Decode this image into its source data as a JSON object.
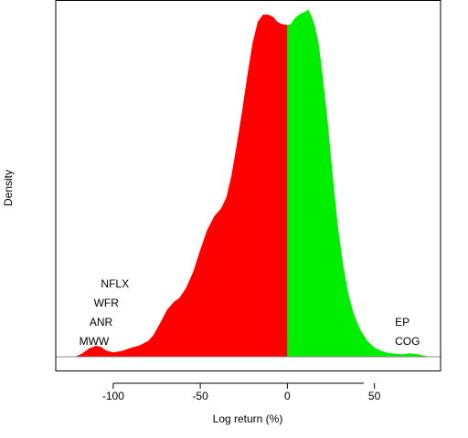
{
  "chart_data": {
    "type": "area",
    "title": "",
    "xlabel": "Log return (%)",
    "ylabel": "Density",
    "xlim": [
      -133,
      88
    ],
    "ylim": [
      0,
      1
    ],
    "x_ticks": [
      -100,
      -50,
      0,
      50
    ],
    "y_ticks": [],
    "grid": false,
    "legend": "none",
    "split_at": 0,
    "colors": {
      "negative": "#ff0000",
      "positive": "#00ee00",
      "axis": "#000000",
      "background": "#ffffff"
    },
    "series": [
      {
        "x": [
          -122,
          -118,
          -114,
          -110,
          -107,
          -104,
          -100,
          -95,
          -90,
          -85,
          -80,
          -77,
          -73,
          -69,
          -65,
          -62,
          -58,
          -54,
          -50,
          -46,
          -42,
          -38,
          -35,
          -32,
          -29,
          -26,
          -23,
          -20,
          -17,
          -14,
          -11,
          -8,
          -6,
          -4,
          -2,
          0,
          2,
          4,
          6,
          8,
          10,
          12,
          14,
          16,
          18,
          20,
          23,
          26,
          29,
          32,
          35,
          38,
          42,
          46,
          50,
          54,
          58,
          62,
          66,
          70,
          74,
          78,
          82
        ],
        "y": [
          0.0,
          0.009,
          0.024,
          0.032,
          0.029,
          0.018,
          0.013,
          0.017,
          0.026,
          0.033,
          0.046,
          0.063,
          0.099,
          0.138,
          0.161,
          0.172,
          0.203,
          0.249,
          0.313,
          0.371,
          0.411,
          0.434,
          0.466,
          0.532,
          0.622,
          0.717,
          0.821,
          0.917,
          0.979,
          1.0,
          1.0,
          0.993,
          0.98,
          0.974,
          0.971,
          0.97,
          0.972,
          0.988,
          0.997,
          1.003,
          1.008,
          1.014,
          0.995,
          0.963,
          0.914,
          0.832,
          0.696,
          0.532,
          0.382,
          0.27,
          0.186,
          0.127,
          0.078,
          0.046,
          0.027,
          0.017,
          0.011,
          0.009,
          0.007,
          0.01,
          0.008,
          0.004,
          0.0
        ]
      }
    ],
    "annotations": [
      {
        "text": "NFLX",
        "x": -99,
        "y": 0.214
      },
      {
        "text": "WFR",
        "x": -104,
        "y": 0.157
      },
      {
        "text": "ANR",
        "x": -107,
        "y": 0.102
      },
      {
        "text": "MWW",
        "x": -111,
        "y": 0.046
      },
      {
        "text": "EP",
        "x": 66,
        "y": 0.102
      },
      {
        "text": "COG",
        "x": 69,
        "y": 0.046
      }
    ]
  }
}
